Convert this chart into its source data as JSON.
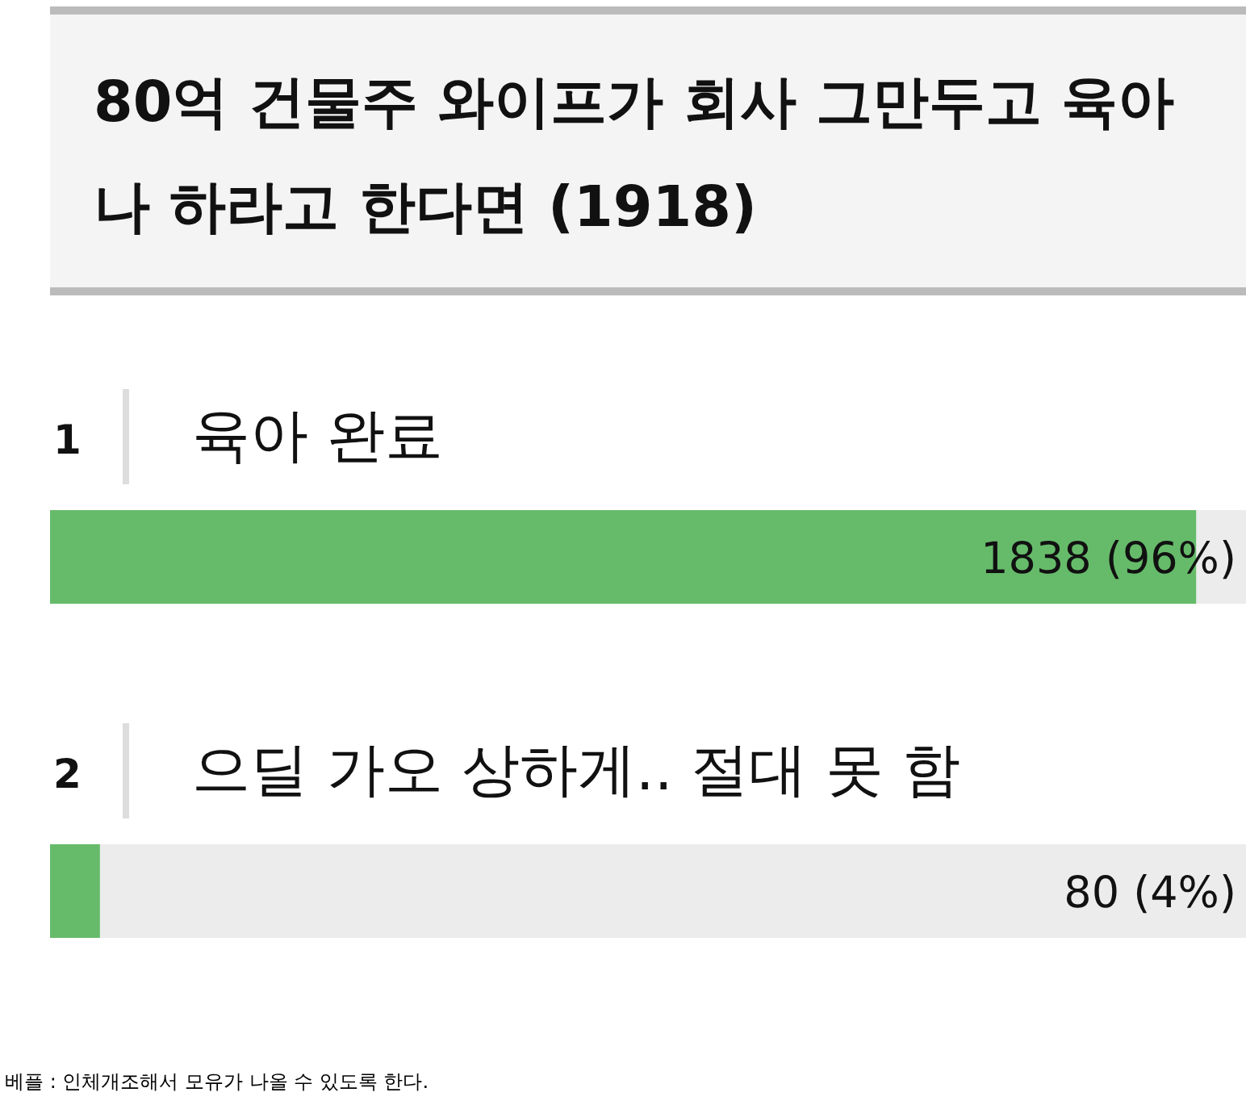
{
  "chart_data": {
    "type": "bar",
    "orientation": "horizontal",
    "title": "80억 건물주 와이프가 회사 그만두고 육아나 하라고 한다면 (1918)",
    "categories": [
      "육아 완료",
      "으딜 가오 상하게.. 절대 못 함"
    ],
    "values": [
      1838,
      80
    ],
    "value_labels": [
      "1838 (96%)",
      "80 (4%)"
    ],
    "color": "#66bb6a",
    "xlim": [
      0,
      1918
    ],
    "tick_labels": "y",
    "annotations": [
      "1",
      "2",
      "베플 : 인체개조해서 모유가 나올 수 있도록 한다."
    ]
  }
}
